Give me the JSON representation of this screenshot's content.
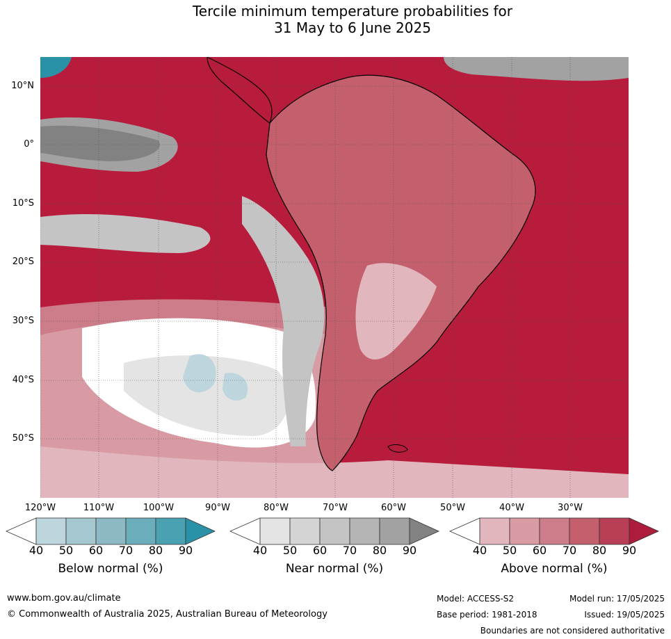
{
  "title": {
    "line1": "Tercile minimum temperature probabilities for",
    "line2": "31 May to 6 June 2025"
  },
  "map": {
    "lat_labels": [
      "10°N",
      "0°",
      "10°S",
      "20°S",
      "30°S",
      "40°S",
      "50°S"
    ],
    "lon_labels": [
      "120°W",
      "110°W",
      "100°W",
      "90°W",
      "80°W",
      "70°W",
      "60°W",
      "50°W",
      "40°W",
      "30°W"
    ],
    "colors": {
      "ocean_above": "#b81c3c",
      "land_border": "#000000",
      "country_border": "#808080"
    }
  },
  "legends": [
    {
      "label": "Below normal (%)",
      "ticks": [
        "40",
        "50",
        "60",
        "70",
        "80",
        "90"
      ],
      "colors": [
        "#ffffff",
        "#bdd5dc",
        "#a5c8d0",
        "#8bbac5",
        "#6badbb",
        "#49a1b2",
        "#2b91a6"
      ]
    },
    {
      "label": "Near normal (%)",
      "ticks": [
        "40",
        "50",
        "60",
        "70",
        "80",
        "90"
      ],
      "colors": [
        "#ffffff",
        "#e4e4e4",
        "#d4d4d4",
        "#c4c4c4",
        "#b4b4b4",
        "#a2a2a2",
        "#828282"
      ]
    },
    {
      "label": "Above normal (%)",
      "ticks": [
        "40",
        "50",
        "60",
        "70",
        "80",
        "90"
      ],
      "colors": [
        "#ffffff",
        "#e2b6bd",
        "#d89aa3",
        "#cd7d89",
        "#c45f6e",
        "#b83f55",
        "#ad1c3d"
      ]
    }
  ],
  "footer": {
    "url": "www.bom.gov.au/climate",
    "copyright": "© Commonwealth of Australia 2025, Australian Bureau of Meteorology",
    "model": "Model: ACCESS-S2",
    "model_run": "Model run: 17/05/2025",
    "base_period": "Base period: 1981-2018",
    "issued": "Issued: 19/05/2025",
    "disclaimer": "Boundaries are not considered authoritative"
  }
}
